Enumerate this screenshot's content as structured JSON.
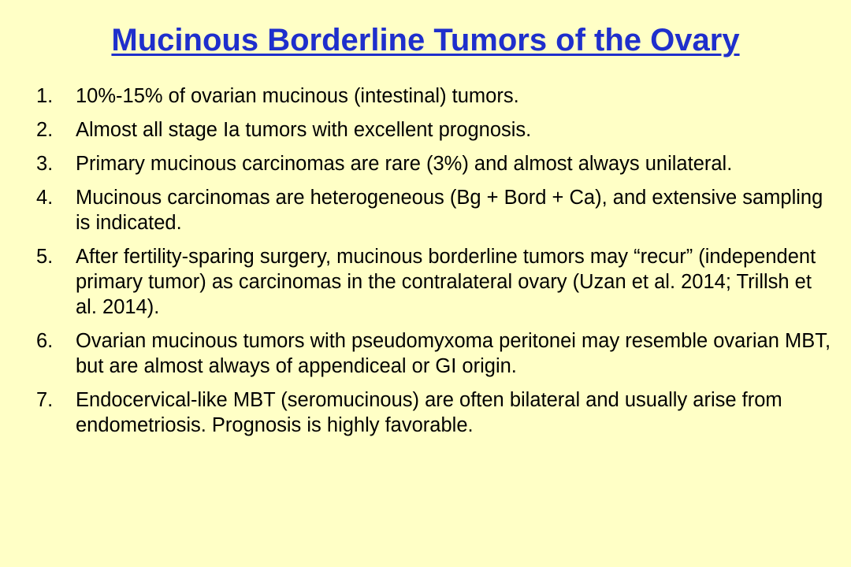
{
  "slide": {
    "title": "Mucinous Borderline Tumors of the Ovary",
    "colors": {
      "background": "#FFFFC6",
      "title": "#1F2FCC",
      "text": "#000000"
    },
    "items": [
      {
        "number": "1.",
        "text": "10%-15% of ovarian mucinous (intestinal) tumors."
      },
      {
        "number": "2.",
        "text": "Almost all stage Ia tumors with excellent prognosis."
      },
      {
        "number": "3.",
        "text": "Primary mucinous carcinomas are rare (3%) and almost always unilateral."
      },
      {
        "number": "4.",
        "text": "Mucinous carcinomas are heterogeneous (Bg + Bord + Ca), and extensive sampling is indicated."
      },
      {
        "number": "5.",
        "text": "After fertility-sparing surgery, mucinous borderline tumors may “recur” (independent primary tumor) as carcinomas in the contralateral ovary (Uzan et al. 2014; Trillsh et al. 2014)."
      },
      {
        "number": "6.",
        "text": "Ovarian mucinous tumors with pseudomyxoma peritonei may resemble ovarian MBT, but are almost always of appendiceal or GI origin."
      },
      {
        "number": "7.",
        "text": "Endocervical-like MBT (seromucinous) are often bilateral and usually arise from endometriosis. Prognosis is highly favorable."
      }
    ]
  }
}
